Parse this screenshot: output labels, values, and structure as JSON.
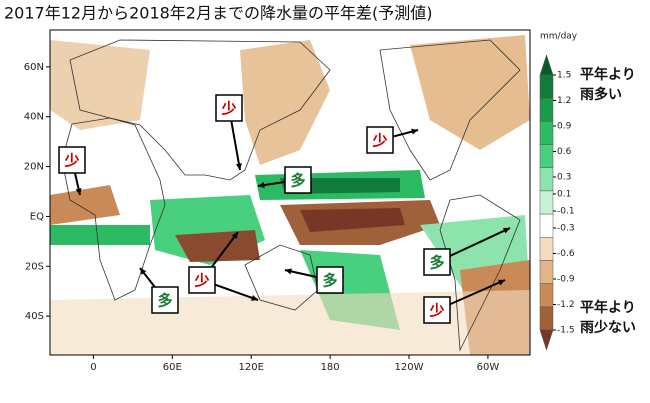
{
  "chart_data": {
    "type": "map",
    "title": "2017年12月から2018年2月までの降水量の平年差(予測値)",
    "unit": "mm/day",
    "xlim": [
      -33,
      332
    ],
    "ylim": [
      -55.6,
      74.8
    ],
    "xticks": [
      0,
      {
        "value": 60,
        "label": "60E"
      },
      {
        "value": 120,
        "label": "120E"
      },
      180,
      {
        "value": 240,
        "label": "120W"
      },
      {
        "value": 300,
        "label": "60W"
      }
    ],
    "yticks": [
      {
        "value": 60,
        "label": "60N"
      },
      {
        "value": 40,
        "label": "40N"
      },
      {
        "value": 20,
        "label": "20N"
      },
      {
        "value": 0,
        "label": "EQ"
      },
      {
        "value": -20,
        "label": "20S"
      },
      {
        "value": -40,
        "label": "40S"
      }
    ],
    "colorbar_ticks": [
      1.5,
      1.2,
      0.9,
      0.6,
      0.3,
      0.1,
      -0.1,
      -0.3,
      -0.6,
      -0.9,
      -1.2,
      -1.5
    ],
    "colorbar_colors": [
      "#0b5a2a",
      "#127a3a",
      "#1c9a4c",
      "#2cba62",
      "#48d07e",
      "#8ce3ab",
      "#c8f2d6",
      "#ffffff",
      "#f3dcc0",
      "#e2b587",
      "#c98a57",
      "#a0603a",
      "#763726"
    ],
    "legend_wet": [
      "平年より",
      "雨多い"
    ],
    "legend_dry": [
      "平年より",
      "雨少ない"
    ],
    "annotations": [
      "少",
      "少",
      "多",
      "少",
      "多",
      "少",
      "多",
      "多",
      "少"
    ]
  }
}
